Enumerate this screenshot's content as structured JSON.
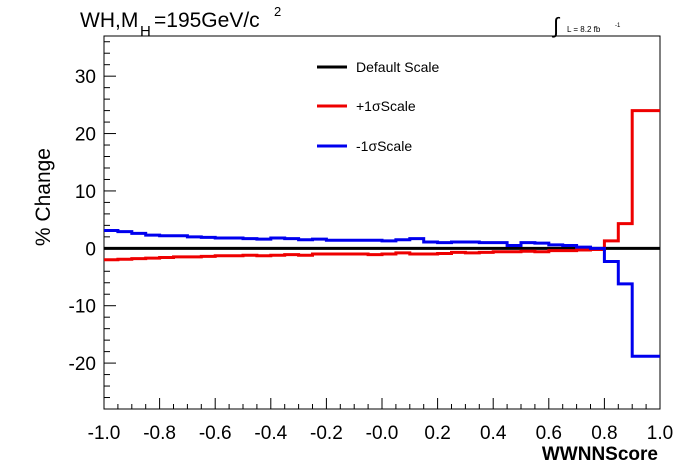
{
  "chart_data": {
    "type": "line",
    "title": {
      "prefix": "WH,M",
      "subscript": "H",
      "value": "=195GeV/c",
      "superscript": "2"
    },
    "luminosity": {
      "symbol": "∫",
      "text": "L = 8.2 fb",
      "superscript": "-1"
    },
    "xlabel": "WWNNScore",
    "ylabel": "% Change",
    "xlim": [
      -1.0,
      1.0
    ],
    "ylim": [
      -28,
      37
    ],
    "x_ticks": [
      "-1.0",
      "-0.8",
      "-0.6",
      "-0.4",
      "-0.2",
      "-0.0",
      "0.2",
      "0.4",
      "0.6",
      "0.8",
      "1.0"
    ],
    "y_ticks": [
      "-20",
      "-10",
      "0",
      "10",
      "20",
      "30"
    ],
    "bin_edges": [
      -1.0,
      -0.95,
      -0.9,
      -0.85,
      -0.8,
      -0.75,
      -0.7,
      -0.65,
      -0.6,
      -0.55,
      -0.5,
      -0.45,
      -0.4,
      -0.35,
      -0.3,
      -0.25,
      -0.2,
      -0.15,
      -0.1,
      -0.05,
      0.0,
      0.05,
      0.1,
      0.15,
      0.2,
      0.25,
      0.3,
      0.35,
      0.4,
      0.45,
      0.5,
      0.55,
      0.6,
      0.65,
      0.7,
      0.75,
      0.8,
      0.85,
      0.9,
      0.95,
      1.0
    ],
    "series": [
      {
        "name": "Default Scale",
        "color": "#000000",
        "values": [
          0,
          0,
          0,
          0,
          0,
          0,
          0,
          0,
          0,
          0,
          0,
          0,
          0,
          0,
          0,
          0,
          0,
          0,
          0,
          0,
          0,
          0,
          0,
          0,
          0,
          0,
          0,
          0,
          0,
          0,
          0,
          0,
          0,
          0,
          0,
          0,
          0,
          0,
          0,
          0
        ]
      },
      {
        "name": "+1σScale",
        "color": "#ee0000",
        "values": [
          -2.0,
          -1.9,
          -1.8,
          -1.7,
          -1.6,
          -1.5,
          -1.5,
          -1.4,
          -1.3,
          -1.3,
          -1.2,
          -1.3,
          -1.2,
          -1.1,
          -1.2,
          -1.0,
          -1.0,
          -1.0,
          -1.0,
          -1.1,
          -1.0,
          -0.8,
          -1.0,
          -1.0,
          -0.9,
          -0.7,
          -0.8,
          -0.7,
          -0.6,
          -0.6,
          -0.5,
          -0.6,
          -0.4,
          -0.4,
          -0.3,
          -0.2,
          1.3,
          4.3,
          24.0,
          24.0
        ]
      },
      {
        "name": "-1σScale",
        "color": "#0000ee",
        "values": [
          3.1,
          2.9,
          2.6,
          2.3,
          2.2,
          2.2,
          2.0,
          1.9,
          1.8,
          1.8,
          1.7,
          1.6,
          1.8,
          1.7,
          1.5,
          1.6,
          1.4,
          1.4,
          1.4,
          1.4,
          1.3,
          1.5,
          1.7,
          1.1,
          1.0,
          1.1,
          1.1,
          1.0,
          1.0,
          0.5,
          1.0,
          0.9,
          0.6,
          0.5,
          0.2,
          0.0,
          -2.3,
          -6.2,
          -18.8,
          -18.8
        ]
      }
    ],
    "legend_position": "top-center",
    "grid": false
  }
}
